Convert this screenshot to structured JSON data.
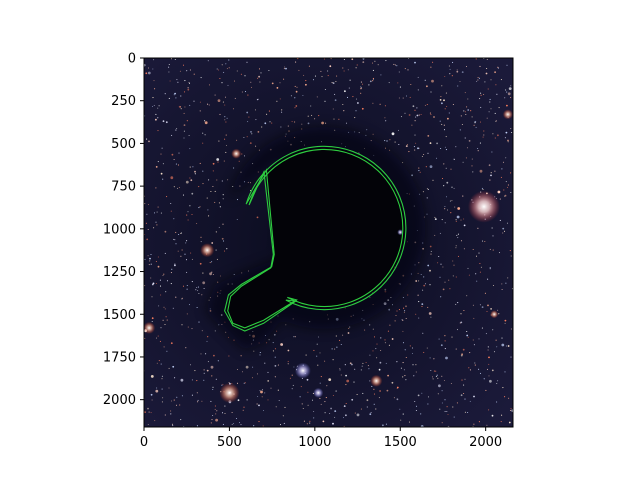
{
  "figure": {
    "subject": "starfield with dark nebula cutout and green contour",
    "contour_color": "#2ecc40",
    "background_color": "#07081a"
  },
  "chart_data": {
    "type": "image",
    "title": "",
    "xlabel": "",
    "ylabel": "",
    "xlim": [
      0,
      2160
    ],
    "ylim": [
      2160,
      0
    ],
    "x_ticks": [
      "0",
      "500",
      "1000",
      "1500",
      "2000"
    ],
    "y_ticks": [
      "0",
      "250",
      "500",
      "750",
      "1000",
      "1250",
      "1500",
      "1750",
      "2000"
    ],
    "grid": false
  }
}
